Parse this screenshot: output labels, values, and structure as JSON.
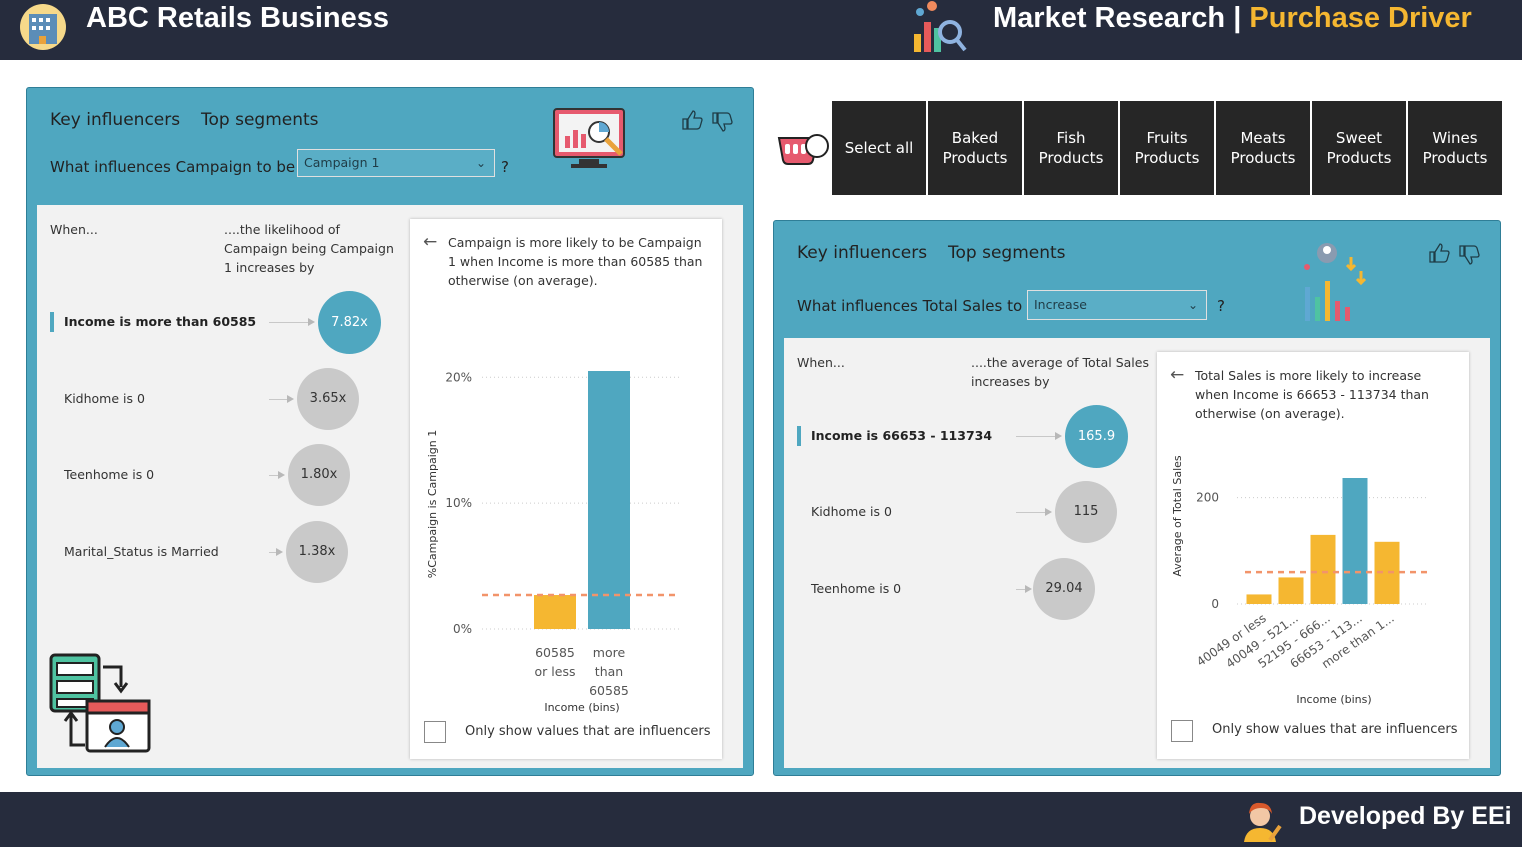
{
  "header": {
    "company": "ABC Retails Business",
    "title_left": "Market Research",
    "separator": "|",
    "title_right": "Purchase Driver"
  },
  "footer": {
    "credit": "Developed By EEi"
  },
  "colors": {
    "navy": "#262c3d",
    "teal": "#4fa7c0",
    "orange": "#f5b731",
    "dark": "#262626"
  },
  "left_panel": {
    "tab_key": "Key influencers",
    "tab_top": "Top segments",
    "question_prefix": "What influences Campaign to be",
    "dropdown_value": "Campaign 1",
    "question_mark": "?",
    "col_when": "When...",
    "col_likelihood": "....the likelihood of Campaign being Campaign 1 increases by",
    "influencers": [
      {
        "label": "Income is more than 60585",
        "value": "7.82x"
      },
      {
        "label": "Kidhome is 0",
        "value": "3.65x"
      },
      {
        "label": "Teenhome is 0",
        "value": "1.80x"
      },
      {
        "label": "Marital_Status is Married",
        "value": "1.38x"
      }
    ],
    "detail": {
      "description": "Campaign is more likely to be Campaign 1 when Income is more than 60585 than otherwise (on average).",
      "checkbox_label": "Only show values that are influencers"
    }
  },
  "right_panel": {
    "tab_key": "Key influencers",
    "tab_top": "Top segments",
    "question_prefix": "What influences Total Sales to",
    "dropdown_value": "Increase",
    "question_mark": "?",
    "col_when": "When...",
    "col_average": "....the average of Total Sales increases by",
    "influencers": [
      {
        "label": "Income is 66653 - 113734",
        "value": "165.9"
      },
      {
        "label": "Kidhome is 0",
        "value": "115"
      },
      {
        "label": "Teenhome is 0",
        "value": "29.04"
      }
    ],
    "detail": {
      "description": "Total Sales is more likely to increase when Income is 66653 - 113734 than otherwise (on average).",
      "checkbox_label": "Only show values that are influencers"
    }
  },
  "slicer": {
    "items": [
      {
        "label": "Select all"
      },
      {
        "label": "Baked Products"
      },
      {
        "label": "Fish Products"
      },
      {
        "label": "Fruits Products"
      },
      {
        "label": "Meats Products"
      },
      {
        "label": "Sweet Products"
      },
      {
        "label": "Wines Products"
      }
    ]
  },
  "chart_data": [
    {
      "type": "bar",
      "title": "",
      "xlabel": "Income (bins)",
      "ylabel": "%Campaign is Campaign 1",
      "categories": [
        "60585 or less",
        "more than 60585"
      ],
      "values": [
        2.7,
        20.5
      ],
      "highlight": [
        false,
        true
      ],
      "average_line": 2.7,
      "y_ticks": [
        "0%",
        "10%",
        "20%"
      ],
      "ylim": [
        0,
        20.5
      ],
      "unit": "%"
    },
    {
      "type": "bar",
      "title": "",
      "xlabel": "Income (bins)",
      "ylabel": "Average of Total Sales",
      "categories": [
        "40049 or less",
        "40049 - 521...",
        "52195 - 666...",
        "66653 - 113...",
        "more than 1..."
      ],
      "values": [
        18,
        50,
        130,
        237,
        117
      ],
      "highlight": [
        false,
        false,
        false,
        true,
        false
      ],
      "average_line": 60,
      "y_ticks": [
        "0",
        "200"
      ],
      "ylim": [
        0,
        237
      ]
    }
  ]
}
